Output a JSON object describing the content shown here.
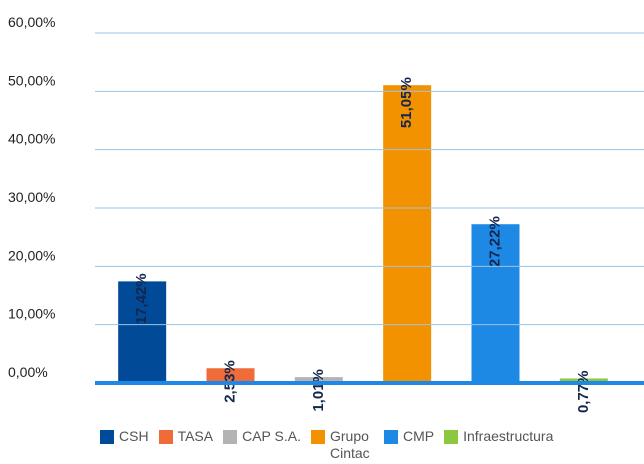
{
  "chart_data": {
    "type": "bar",
    "categories": [
      "CSH",
      "TASA",
      "CAP S.A.",
      "Grupo Cintac",
      "CMP",
      "Infraestructura"
    ],
    "values": [
      17.42,
      2.53,
      1.01,
      51.05,
      27.22,
      0.77
    ],
    "value_labels": [
      "17,42%",
      "2,53%",
      "1,01%",
      "51,05%",
      "27,22%",
      "0,77%"
    ],
    "colors": [
      "#004a97",
      "#ef6c3a",
      "#b3b3b3",
      "#f39200",
      "#1e88e5",
      "#8dc63f"
    ],
    "ylim": [
      0,
      60
    ],
    "yticks": [
      {
        "value": 0,
        "label": "0,00%"
      },
      {
        "value": 10,
        "label": "10,00%"
      },
      {
        "value": 20,
        "label": "20,00%"
      },
      {
        "value": 30,
        "label": "30,00%"
      },
      {
        "value": 40,
        "label": "40,00%"
      },
      {
        "value": 50,
        "label": "50,00%"
      },
      {
        "value": 60,
        "label": "60,00%"
      }
    ],
    "grid": true,
    "legend": "bottom"
  }
}
